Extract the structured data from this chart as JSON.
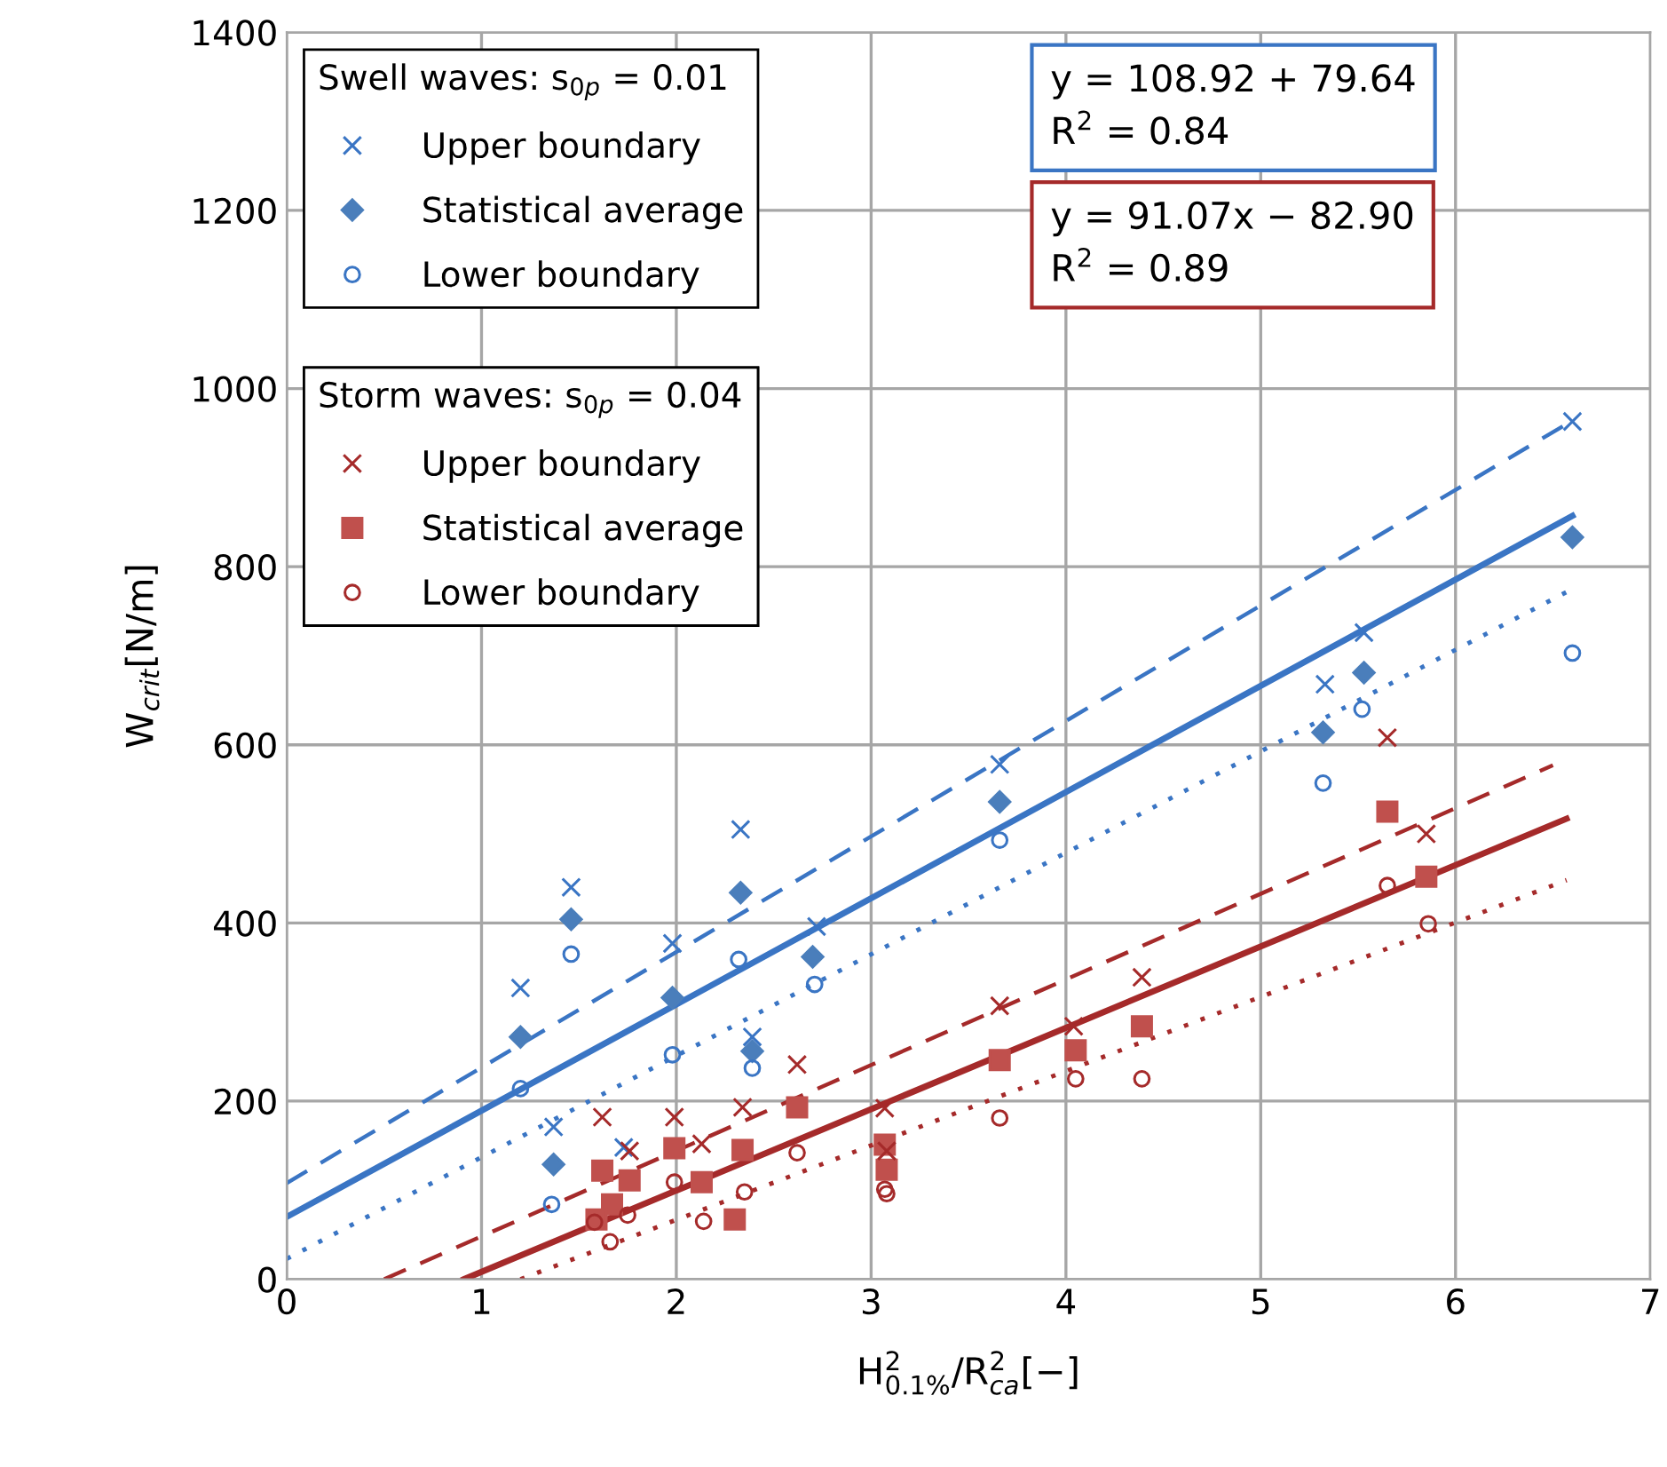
{
  "chart_data": {
    "type": "scatter",
    "xlabel": "H$^{2}$$_{0.1%}$/R$^{2}$$_{ca}$[−]",
    "ylabel": "W$_{crit}$[N/m]",
    "legend_title": [
      "Swell waves: s$_{0p}$ = 0.01",
      "Storm waves: s$_{0p}$ = 0.04"
    ],
    "annotations": [
      "y = 108.92 + 79.64\nR$^{2}$ = 0.84",
      "y = 91.07x − 82.90\nR$^{2}$ = 0.89"
    ],
    "xlim": [
      0,
      7
    ],
    "ylim": [
      0,
      1400
    ],
    "xticks": [
      0,
      1,
      2,
      3,
      4,
      5,
      6,
      7
    ],
    "yticks": [
      0,
      200,
      400,
      600,
      800,
      1000,
      1200,
      1400
    ],
    "grid": true,
    "legend": "top left",
    "series": [
      {
        "name": "Upper boundary",
        "color": "#3a75c4",
        "marker": "cross",
        "x": [
          1.46,
          1.2,
          1.98,
          2.39,
          1.37,
          1.73,
          2.33,
          2.72,
          3.66,
          5.33,
          5.53,
          6.6
        ],
        "values": [
          440,
          327,
          377,
          272,
          171,
          148,
          505,
          396,
          578,
          668,
          726,
          963
        ]
      },
      {
        "name": "Statistical average",
        "color": "#4a7ebb",
        "marker": "diamond",
        "x": [
          1.46,
          2.33,
          1.2,
          1.98,
          2.39,
          1.37,
          2.7,
          3.66,
          5.32,
          5.53,
          6.6
        ],
        "values": [
          404,
          434,
          272,
          316,
          256,
          129,
          362,
          536,
          614,
          681,
          833
        ]
      },
      {
        "name": "Lower boundary",
        "color": "#3a75c4",
        "marker": "circle",
        "x": [
          1.46,
          2.32,
          1.2,
          1.98,
          2.39,
          1.36,
          2.71,
          3.66,
          5.32,
          5.52,
          6.6
        ],
        "values": [
          365,
          359,
          214,
          252,
          237,
          84,
          331,
          493,
          557,
          640,
          703
        ]
      },
      {
        "name": "Upper boundary",
        "color": "#a52a2a",
        "marker": "cross",
        "x": [
          2.62,
          1.62,
          1.99,
          2.34,
          1.76,
          2.13,
          3.66,
          4.04,
          4.39,
          3.07,
          3.08,
          5.65,
          5.85
        ],
        "values": [
          241,
          182,
          182,
          193,
          144,
          152,
          307,
          284,
          339,
          192,
          144,
          608,
          500
        ]
      },
      {
        "name": "Statistical average",
        "color": "#c0504d",
        "marker": "square",
        "x": [
          2.62,
          1.62,
          1.76,
          1.99,
          2.13,
          2.34,
          2.3,
          1.67,
          1.59,
          3.66,
          4.05,
          4.39,
          3.07,
          3.08,
          5.65,
          5.85
        ],
        "values": [
          193,
          122,
          111,
          147,
          109,
          145,
          67,
          84,
          67,
          246,
          257,
          284,
          151,
          123,
          525,
          452
        ]
      },
      {
        "name": "Lower boundary",
        "color": "#a52a2a",
        "marker": "circle",
        "x": [
          2.62,
          1.99,
          2.35,
          2.14,
          1.75,
          1.66,
          1.58,
          3.66,
          4.05,
          4.39,
          3.07,
          3.08,
          5.65,
          5.86
        ],
        "values": [
          142,
          109,
          98,
          65,
          72,
          42,
          64,
          181,
          225,
          225,
          101,
          96,
          442,
          399
        ]
      },
      {
        "type": "line",
        "color": "#3a75c4",
        "line_style": "dashed",
        "x": [
          0,
          6.6
        ],
        "values": [
          108,
          964
        ]
      },
      {
        "type": "line",
        "color": "#3a75c4",
        "line_style": "solid",
        "x": [
          0,
          6.6
        ],
        "values": [
          70,
          857
        ]
      },
      {
        "type": "line",
        "color": "#3a75c4",
        "line_style": "dotted",
        "x": [
          0,
          6.6
        ],
        "values": [
          23,
          775
        ]
      },
      {
        "type": "line",
        "color": "#a52a2a",
        "line_style": "dashed",
        "x": [
          0.5,
          6.5
        ],
        "values": [
          0,
          577
        ]
      },
      {
        "type": "line",
        "color": "#a52a2a",
        "line_style": "solid",
        "x": [
          0.91,
          6.57
        ],
        "values": [
          0,
          517
        ]
      },
      {
        "type": "line",
        "color": "#a52a2a",
        "line_style": "dotted",
        "x": [
          1.2,
          6.57
        ],
        "values": [
          0,
          448
        ]
      }
    ]
  }
}
